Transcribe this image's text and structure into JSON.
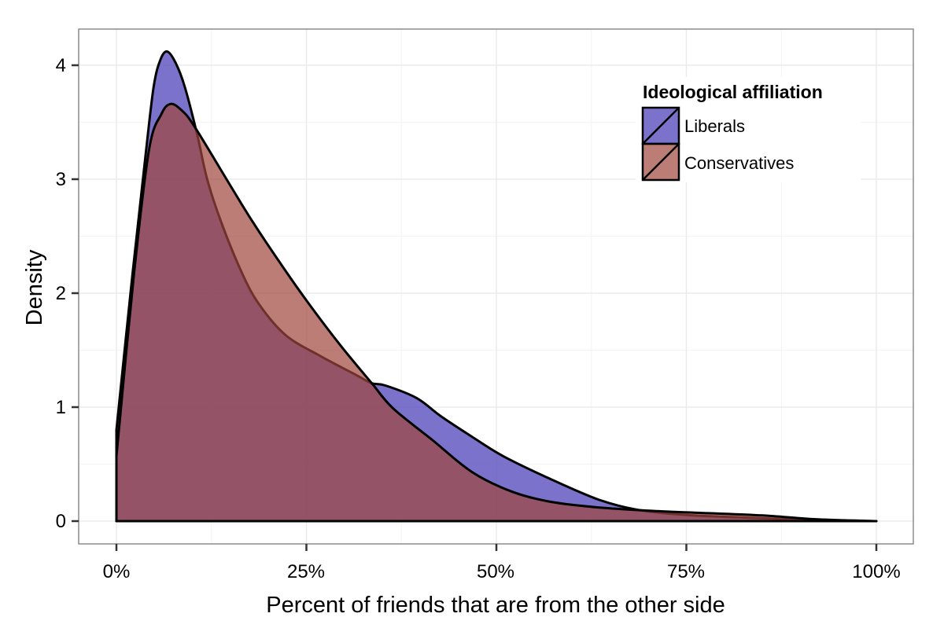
{
  "chart_data": {
    "type": "area",
    "subtype": "density",
    "title": "",
    "xlabel": "Percent of friends that are from the other side",
    "ylabel": "Density",
    "xlim": [
      0,
      100
    ],
    "ylim": [
      0,
      4.2
    ],
    "x_ticks": [
      0,
      25,
      50,
      75,
      100
    ],
    "x_tick_labels": [
      "0%",
      "25%",
      "50%",
      "75%",
      "100%"
    ],
    "y_ticks": [
      0,
      1,
      2,
      3,
      4
    ],
    "y_tick_labels": [
      "0",
      "1",
      "2",
      "3",
      "4"
    ],
    "grid": true,
    "legend": {
      "title": "Ideological affiliation",
      "position": "top-right",
      "entries": [
        "Liberals",
        "Conservatives"
      ]
    },
    "series": [
      {
        "name": "Liberals",
        "color": "#5a50be",
        "points": [
          [
            0,
            0
          ],
          [
            0,
            0.8
          ],
          [
            2.1,
            2.16
          ],
          [
            3.8,
            3.19
          ],
          [
            4.9,
            3.81
          ],
          [
            5.8,
            4.05
          ],
          [
            6.7,
            4.12
          ],
          [
            7.8,
            4.02
          ],
          [
            9.0,
            3.81
          ],
          [
            10.6,
            3.4
          ],
          [
            11.9,
            3.01
          ],
          [
            13.7,
            2.64
          ],
          [
            16.5,
            2.18
          ],
          [
            18.8,
            1.9
          ],
          [
            22.3,
            1.63
          ],
          [
            26.8,
            1.45
          ],
          [
            31.6,
            1.28
          ],
          [
            33.6,
            1.21
          ],
          [
            35.4,
            1.19
          ],
          [
            39.5,
            1.08
          ],
          [
            42.7,
            0.92
          ],
          [
            46.8,
            0.74
          ],
          [
            50.9,
            0.57
          ],
          [
            57.1,
            0.37
          ],
          [
            63.4,
            0.19
          ],
          [
            68.5,
            0.1
          ],
          [
            74.7,
            0.055
          ],
          [
            83,
            0.03
          ],
          [
            91,
            0.01
          ],
          [
            100,
            0
          ],
          [
            100,
            0
          ]
        ]
      },
      {
        "name": "Conservatives",
        "color": "#a0463c",
        "points": [
          [
            0,
            0
          ],
          [
            0,
            0.57
          ],
          [
            2.3,
            2.16
          ],
          [
            4.3,
            3.26
          ],
          [
            5.9,
            3.57
          ],
          [
            7.1,
            3.66
          ],
          [
            8.5,
            3.61
          ],
          [
            10.2,
            3.47
          ],
          [
            14.4,
            3.01
          ],
          [
            17.8,
            2.64
          ],
          [
            21.9,
            2.23
          ],
          [
            25.4,
            1.9
          ],
          [
            29.5,
            1.54
          ],
          [
            33.6,
            1.21
          ],
          [
            36.4,
            0.99
          ],
          [
            41.6,
            0.71
          ],
          [
            46.8,
            0.43
          ],
          [
            52,
            0.26
          ],
          [
            57.1,
            0.17
          ],
          [
            63.4,
            0.12
          ],
          [
            70.6,
            0.09
          ],
          [
            77.8,
            0.07
          ],
          [
            85,
            0.05
          ],
          [
            92.3,
            0.015
          ],
          [
            100,
            0
          ],
          [
            100,
            0
          ]
        ]
      }
    ]
  },
  "colors": {
    "liberals_fill": "rgba(90,80,190,0.80)",
    "conservatives_fill": "rgba(160,70,60,0.70)",
    "gridline": "#ebebeb",
    "panel_border": "#8c8c8c"
  }
}
